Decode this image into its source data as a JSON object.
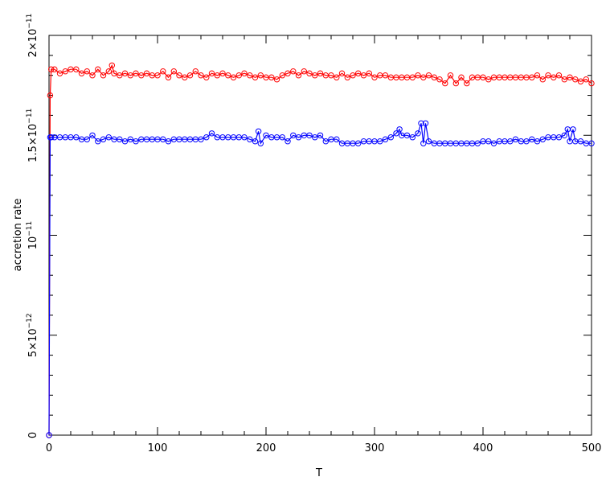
{
  "chart_data": {
    "type": "line",
    "xlabel": "T",
    "ylabel": "accretion rate",
    "xlim": [
      0,
      500
    ],
    "ylim": [
      0,
      2e-11
    ],
    "grid": false,
    "legend": "none",
    "x_ticks": [
      {
        "value": 0,
        "label": "0"
      },
      {
        "value": 100,
        "label": "100"
      },
      {
        "value": 200,
        "label": "200"
      },
      {
        "value": 300,
        "label": "300"
      },
      {
        "value": 400,
        "label": "400"
      },
      {
        "value": 500,
        "label": "500"
      }
    ],
    "y_ticks": [
      {
        "value": 0,
        "mant": "0",
        "exp": ""
      },
      {
        "value": 5e-12,
        "mant": "5×10",
        "exp": "−12"
      },
      {
        "value": 1e-11,
        "mant": "10",
        "exp": "−11"
      },
      {
        "value": 1.5e-11,
        "mant": "1.5×10",
        "exp": "−11"
      },
      {
        "value": 2e-11,
        "mant": "2×10",
        "exp": "−11"
      }
    ],
    "series": [
      {
        "color": "#ff0000",
        "marker": "circle",
        "x": [
          0,
          1,
          2,
          5,
          10,
          15,
          20,
          25,
          30,
          35,
          40,
          45,
          50,
          55,
          58,
          60,
          65,
          70,
          75,
          80,
          85,
          90,
          95,
          100,
          105,
          110,
          115,
          120,
          125,
          130,
          135,
          140,
          145,
          150,
          155,
          160,
          165,
          170,
          175,
          180,
          185,
          190,
          195,
          200,
          205,
          210,
          215,
          220,
          225,
          230,
          235,
          240,
          245,
          250,
          255,
          260,
          265,
          270,
          275,
          280,
          285,
          290,
          295,
          300,
          305,
          310,
          315,
          320,
          325,
          330,
          335,
          340,
          345,
          350,
          355,
          360,
          365,
          370,
          375,
          380,
          385,
          390,
          395,
          400,
          405,
          410,
          415,
          420,
          425,
          430,
          435,
          440,
          445,
          450,
          455,
          460,
          465,
          470,
          475,
          480,
          485,
          490,
          495,
          500
        ],
        "y": [
          0,
          1.7e-11,
          1.83e-11,
          1.83e-11,
          1.81e-11,
          1.82e-11,
          1.83e-11,
          1.83e-11,
          1.81e-11,
          1.82e-11,
          1.8e-11,
          1.83e-11,
          1.8e-11,
          1.82e-11,
          1.85e-11,
          1.81e-11,
          1.8e-11,
          1.81e-11,
          1.8e-11,
          1.81e-11,
          1.8e-11,
          1.81e-11,
          1.8e-11,
          1.8e-11,
          1.82e-11,
          1.79e-11,
          1.82e-11,
          1.8e-11,
          1.79e-11,
          1.8e-11,
          1.82e-11,
          1.8e-11,
          1.79e-11,
          1.81e-11,
          1.8e-11,
          1.81e-11,
          1.8e-11,
          1.79e-11,
          1.8e-11,
          1.81e-11,
          1.8e-11,
          1.79e-11,
          1.8e-11,
          1.79e-11,
          1.79e-11,
          1.78e-11,
          1.8e-11,
          1.81e-11,
          1.82e-11,
          1.8e-11,
          1.82e-11,
          1.81e-11,
          1.8e-11,
          1.81e-11,
          1.8e-11,
          1.8e-11,
          1.79e-11,
          1.81e-11,
          1.79e-11,
          1.8e-11,
          1.81e-11,
          1.8e-11,
          1.81e-11,
          1.79e-11,
          1.8e-11,
          1.8e-11,
          1.79e-11,
          1.79e-11,
          1.79e-11,
          1.79e-11,
          1.79e-11,
          1.8e-11,
          1.79e-11,
          1.8e-11,
          1.79e-11,
          1.78e-11,
          1.76e-11,
          1.8e-11,
          1.76e-11,
          1.79e-11,
          1.76e-11,
          1.79e-11,
          1.79e-11,
          1.79e-11,
          1.78e-11,
          1.79e-11,
          1.79e-11,
          1.79e-11,
          1.79e-11,
          1.79e-11,
          1.79e-11,
          1.79e-11,
          1.79e-11,
          1.8e-11,
          1.78e-11,
          1.8e-11,
          1.79e-11,
          1.8e-11,
          1.78e-11,
          1.79e-11,
          1.78e-11,
          1.77e-11,
          1.78e-11,
          1.76e-11
        ]
      },
      {
        "color": "#0000ff",
        "marker": "circle",
        "x": [
          0,
          1,
          2,
          5,
          10,
          15,
          20,
          25,
          30,
          35,
          40,
          45,
          50,
          55,
          60,
          65,
          70,
          75,
          80,
          85,
          90,
          95,
          100,
          105,
          110,
          115,
          120,
          125,
          130,
          135,
          140,
          145,
          150,
          155,
          160,
          165,
          170,
          175,
          180,
          185,
          190,
          193,
          195,
          200,
          205,
          210,
          215,
          220,
          225,
          230,
          235,
          240,
          245,
          250,
          255,
          260,
          265,
          270,
          275,
          280,
          285,
          290,
          295,
          300,
          305,
          310,
          315,
          320,
          323,
          325,
          330,
          335,
          340,
          343,
          345,
          347,
          350,
          355,
          360,
          365,
          370,
          375,
          380,
          385,
          390,
          395,
          400,
          405,
          410,
          415,
          420,
          425,
          430,
          435,
          440,
          445,
          450,
          455,
          460,
          465,
          470,
          475,
          478,
          480,
          483,
          485,
          490,
          495,
          500
        ],
        "y": [
          0,
          1.49e-11,
          1.49e-11,
          1.49e-11,
          1.49e-11,
          1.49e-11,
          1.49e-11,
          1.49e-11,
          1.48e-11,
          1.48e-11,
          1.5e-11,
          1.47e-11,
          1.48e-11,
          1.49e-11,
          1.48e-11,
          1.48e-11,
          1.47e-11,
          1.48e-11,
          1.47e-11,
          1.48e-11,
          1.48e-11,
          1.48e-11,
          1.48e-11,
          1.48e-11,
          1.47e-11,
          1.48e-11,
          1.48e-11,
          1.48e-11,
          1.48e-11,
          1.48e-11,
          1.48e-11,
          1.49e-11,
          1.51e-11,
          1.49e-11,
          1.49e-11,
          1.49e-11,
          1.49e-11,
          1.49e-11,
          1.49e-11,
          1.48e-11,
          1.47e-11,
          1.52e-11,
          1.46e-11,
          1.5e-11,
          1.49e-11,
          1.49e-11,
          1.49e-11,
          1.47e-11,
          1.5e-11,
          1.49e-11,
          1.5e-11,
          1.5e-11,
          1.49e-11,
          1.5e-11,
          1.47e-11,
          1.48e-11,
          1.48e-11,
          1.46e-11,
          1.46e-11,
          1.46e-11,
          1.46e-11,
          1.47e-11,
          1.47e-11,
          1.47e-11,
          1.47e-11,
          1.48e-11,
          1.49e-11,
          1.51e-11,
          1.53e-11,
          1.5e-11,
          1.5e-11,
          1.49e-11,
          1.51e-11,
          1.56e-11,
          1.46e-11,
          1.56e-11,
          1.47e-11,
          1.46e-11,
          1.46e-11,
          1.46e-11,
          1.46e-11,
          1.46e-11,
          1.46e-11,
          1.46e-11,
          1.46e-11,
          1.46e-11,
          1.47e-11,
          1.47e-11,
          1.46e-11,
          1.47e-11,
          1.47e-11,
          1.47e-11,
          1.48e-11,
          1.47e-11,
          1.47e-11,
          1.48e-11,
          1.47e-11,
          1.48e-11,
          1.49e-11,
          1.49e-11,
          1.49e-11,
          1.5e-11,
          1.53e-11,
          1.47e-11,
          1.53e-11,
          1.47e-11,
          1.47e-11,
          1.46e-11,
          1.46e-11
        ]
      }
    ]
  }
}
